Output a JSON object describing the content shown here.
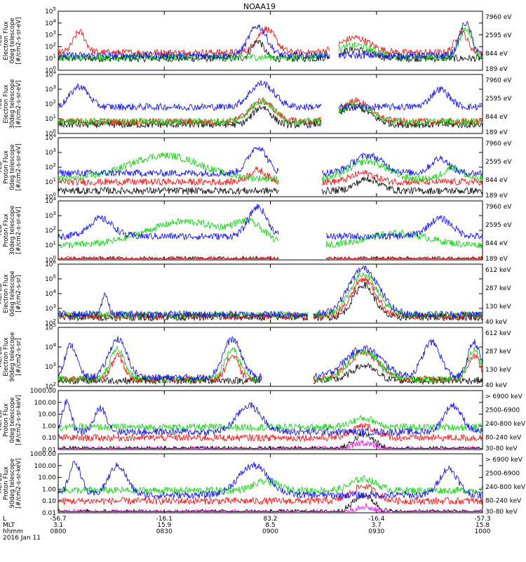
{
  "title": "NOAA19",
  "colors": {
    "black": "#000000",
    "red": "#ff0000",
    "green": "#00d000",
    "blue": "#0000ff",
    "magenta": "#ff00ff"
  },
  "xaxis": {
    "times": [
      "0800",
      "0830",
      "0900",
      "0930",
      "1000"
    ],
    "row_labels": [
      "L",
      "MLT",
      "hhmm",
      "2016 Jan 11"
    ],
    "L": [
      "-56.7",
      "-16.1",
      "83.2",
      "-16.4",
      "-57.3"
    ],
    "MLT": [
      "3.1",
      "15.9",
      "8.5",
      "3.7",
      "15.8"
    ]
  },
  "chart_data": [
    {
      "type": "line",
      "panel": "ted-electron-0deg",
      "ylabel": [
        "TED",
        "Electron Flux",
        "0deg telescope",
        "[#/cm2-s-sr-eV]"
      ],
      "yticks": [
        "10^0",
        "10^1",
        "10^2",
        "10^3",
        "10^4",
        "10^5"
      ],
      "ylim": [
        1,
        100000
      ],
      "scale": "log",
      "series": [
        {
          "name": "7960 eV",
          "color": "black"
        },
        {
          "name": "2595 eV",
          "color": "red"
        },
        {
          "name": "844 eV",
          "color": "green"
        },
        {
          "name": "189 eV",
          "color": "blue"
        }
      ]
    },
    {
      "type": "line",
      "panel": "ted-electron-30deg",
      "ylabel": [
        "TED",
        "Electron Flux",
        "30deg telescope",
        "[#/cm2-s-sr-eV]"
      ],
      "yticks": [
        "10^0",
        "10^1",
        "10^2",
        "10^3",
        "10^4"
      ],
      "ylim": [
        1,
        10000
      ],
      "scale": "log",
      "series": [
        {
          "name": "7960 eV",
          "color": "black"
        },
        {
          "name": "2595 eV",
          "color": "red"
        },
        {
          "name": "844 eV",
          "color": "green"
        },
        {
          "name": "189 eV",
          "color": "blue"
        }
      ]
    },
    {
      "type": "line",
      "panel": "ted-proton-0deg",
      "ylabel": [
        "TED",
        "Proton Flux",
        "0deg telescope",
        "[#/cm2-s-sr-eV]"
      ],
      "yticks": [
        "10^0",
        "10^1",
        "10^2",
        "10^3",
        "10^4"
      ],
      "ylim": [
        1,
        10000
      ],
      "scale": "log",
      "series": [
        {
          "name": "7960 eV",
          "color": "black"
        },
        {
          "name": "2595 eV",
          "color": "red"
        },
        {
          "name": "844 eV",
          "color": "green"
        },
        {
          "name": "189 eV",
          "color": "blue"
        }
      ]
    },
    {
      "type": "line",
      "panel": "ted-proton-30deg",
      "ylabel": [
        "TED",
        "Proton Flux",
        "30deg telescope",
        "[#/cm2-s-sr-eV]"
      ],
      "yticks": [
        "10^0",
        "10^1",
        "10^2",
        "10^3",
        "10^4"
      ],
      "ylim": [
        1,
        10000
      ],
      "scale": "log",
      "series": [
        {
          "name": "7960 eV",
          "color": "black"
        },
        {
          "name": "2595 eV",
          "color": "red"
        },
        {
          "name": "844 eV",
          "color": "green"
        },
        {
          "name": "189 eV",
          "color": "blue"
        }
      ]
    },
    {
      "type": "line",
      "panel": "meped-electron-0deg",
      "ylabel": [
        "MEPED",
        "Electron Flux",
        "0deg telescope",
        "[#/cm2-s-sr]"
      ],
      "yticks": [
        "10^2",
        "10^3",
        "10^4",
        "10^5",
        "10^6"
      ],
      "ylim": [
        100,
        1000000
      ],
      "scale": "log",
      "series": [
        {
          "name": "612 keV",
          "color": "black"
        },
        {
          "name": "287 keV",
          "color": "red"
        },
        {
          "name": "130 keV",
          "color": "green"
        },
        {
          "name": "40 keV",
          "color": "blue"
        }
      ]
    },
    {
      "type": "line",
      "panel": "meped-electron-90deg",
      "ylabel": [
        "MEPED",
        "Electron Flux",
        "90deg telescope",
        "[#/cm2-s-sr]"
      ],
      "yticks": [
        "10^2",
        "10^3",
        "10^4",
        "10^5"
      ],
      "ylim": [
        100,
        100000
      ],
      "scale": "log",
      "series": [
        {
          "name": "612 keV",
          "color": "black"
        },
        {
          "name": "287 keV",
          "color": "red"
        },
        {
          "name": "130 keV",
          "color": "green"
        },
        {
          "name": "40 keV",
          "color": "blue"
        }
      ]
    },
    {
      "type": "line",
      "panel": "meped-proton-0deg",
      "ylabel": [
        "MEPED",
        "Proton Flux",
        "0deg telescope",
        "[#/cm2-s-sr-keV]"
      ],
      "yticks": [
        "0.01",
        "0.10",
        "1.00",
        "10.00",
        "100.00",
        "1000.00"
      ],
      "ylim": [
        0.01,
        1000
      ],
      "scale": "log",
      "series": [
        {
          "name": "> 6900 keV",
          "color": "magenta"
        },
        {
          "name": "2500-6900",
          "color": "black"
        },
        {
          "name": "240-800 keV",
          "color": "red"
        },
        {
          "name": "80-240 keV",
          "color": "green"
        },
        {
          "name": "30-80 keV",
          "color": "blue"
        }
      ]
    },
    {
      "type": "line",
      "panel": "meped-proton-90deg",
      "ylabel": [
        "MEPED",
        "Proton Flux",
        "90deg telescope",
        "[#/cm2-s-sr-keV]"
      ],
      "yticks": [
        "0.01",
        "0.10",
        "1.00",
        "10.00",
        "100.00",
        "1000.00"
      ],
      "ylim": [
        0.01,
        1000
      ],
      "scale": "log",
      "series": [
        {
          "name": "> 6900 keV",
          "color": "magenta"
        },
        {
          "name": "2500-6900",
          "color": "black"
        },
        {
          "name": "240-800 keV",
          "color": "red"
        },
        {
          "name": "80-240 keV",
          "color": "green"
        },
        {
          "name": "30-80 keV",
          "color": "blue"
        }
      ]
    }
  ]
}
